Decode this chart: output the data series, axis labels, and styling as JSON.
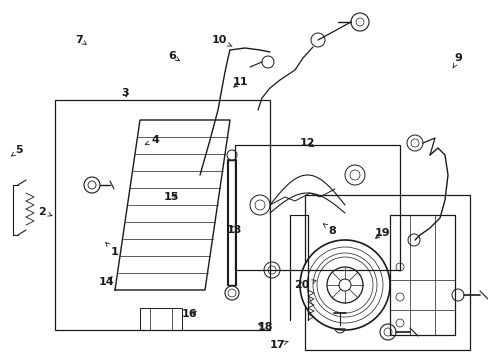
{
  "bg_color": "#ffffff",
  "lc": "#1a1a1a",
  "fig_width": 4.89,
  "fig_height": 3.6,
  "dpi": 100,
  "label_configs": {
    "1": {
      "xt": 0.235,
      "yt": 0.7,
      "xa": 0.215,
      "ya": 0.672
    },
    "2": {
      "xt": 0.085,
      "yt": 0.588,
      "xa": 0.108,
      "ya": 0.6
    },
    "3": {
      "xt": 0.255,
      "yt": 0.258,
      "xa": 0.262,
      "ya": 0.278
    },
    "4": {
      "xt": 0.318,
      "yt": 0.39,
      "xa": 0.29,
      "ya": 0.405
    },
    "5": {
      "xt": 0.038,
      "yt": 0.418,
      "xa": 0.022,
      "ya": 0.435
    },
    "6": {
      "xt": 0.352,
      "yt": 0.155,
      "xa": 0.368,
      "ya": 0.17
    },
    "7": {
      "xt": 0.162,
      "yt": 0.11,
      "xa": 0.178,
      "ya": 0.125
    },
    "8": {
      "xt": 0.68,
      "yt": 0.642,
      "xa": 0.66,
      "ya": 0.62
    },
    "9": {
      "xt": 0.938,
      "yt": 0.16,
      "xa": 0.926,
      "ya": 0.19
    },
    "10": {
      "xt": 0.448,
      "yt": 0.112,
      "xa": 0.48,
      "ya": 0.132
    },
    "11": {
      "xt": 0.492,
      "yt": 0.228,
      "xa": 0.472,
      "ya": 0.248
    },
    "12": {
      "xt": 0.628,
      "yt": 0.398,
      "xa": 0.648,
      "ya": 0.412
    },
    "13": {
      "xt": 0.48,
      "yt": 0.638,
      "xa": 0.465,
      "ya": 0.62
    },
    "14": {
      "xt": 0.218,
      "yt": 0.782,
      "xa": 0.235,
      "ya": 0.762
    },
    "15": {
      "xt": 0.35,
      "yt": 0.548,
      "xa": 0.368,
      "ya": 0.535
    },
    "16": {
      "xt": 0.388,
      "yt": 0.872,
      "xa": 0.408,
      "ya": 0.862
    },
    "17": {
      "xt": 0.568,
      "yt": 0.958,
      "xa": 0.59,
      "ya": 0.948
    },
    "18": {
      "xt": 0.542,
      "yt": 0.908,
      "xa": 0.522,
      "ya": 0.895
    },
    "19": {
      "xt": 0.782,
      "yt": 0.648,
      "xa": 0.762,
      "ya": 0.668
    },
    "20": {
      "xt": 0.618,
      "yt": 0.792,
      "xa": 0.648,
      "ya": 0.778
    }
  }
}
